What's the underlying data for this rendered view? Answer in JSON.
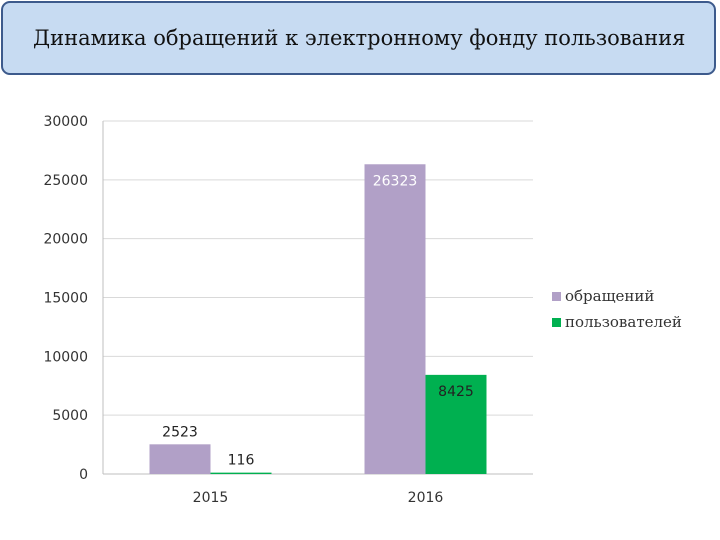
{
  "slide": {
    "title": "Динамика обращений к электронному фонду пользования"
  },
  "colors": {
    "title_bg": "#c7dbf2",
    "title_border": "#3d5a8c",
    "grid": "#d9d9d9",
    "axis": "#bfbfbf"
  },
  "chart_data": {
    "type": "bar",
    "categories": [
      "2015",
      "2016"
    ],
    "series": [
      {
        "name": "обращений",
        "values": [
          2523,
          26323
        ],
        "color": "#b1a0c7"
      },
      {
        "name": "пользователей",
        "values": [
          116,
          8425
        ],
        "color": "#00b050"
      }
    ],
    "y_ticks": [
      "0",
      "5000",
      "10000",
      "15000",
      "20000",
      "25000",
      "30000"
    ],
    "ylim": [
      0,
      30000
    ],
    "grid": true,
    "legend_position": "right",
    "data_labels": [
      [
        "2523",
        "26323"
      ],
      [
        "116",
        "8425"
      ]
    ]
  }
}
